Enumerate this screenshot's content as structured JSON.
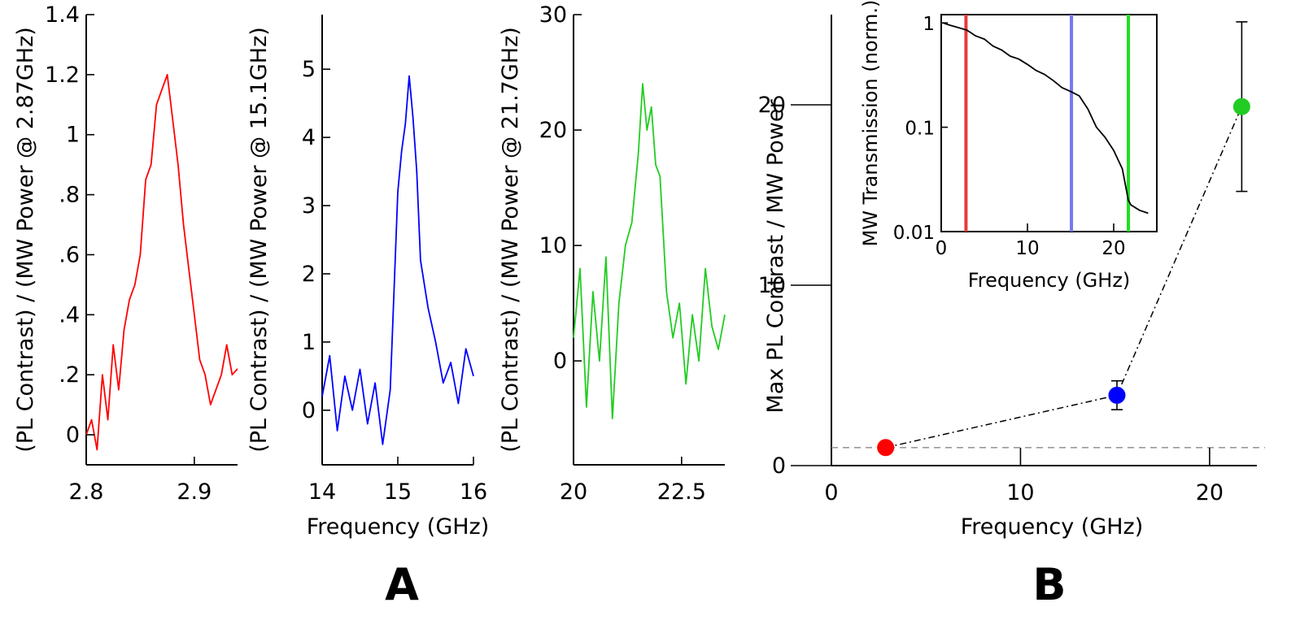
{
  "chart_data": [
    {
      "id": "A1",
      "type": "line",
      "color": "#ff0000",
      "xlabel": "",
      "ylabel": "(PL Contrast) / (MW Power @ 2.87GHz)",
      "xlim": [
        2.8,
        2.94
      ],
      "ylim": [
        -0.1,
        1.4
      ],
      "xticks": [
        {
          "v": 2.8,
          "t": "2.8"
        },
        {
          "v": 2.9,
          "t": "2.9"
        }
      ],
      "yticks": [
        {
          "v": 0,
          "t": "0"
        },
        {
          "v": 0.2,
          "t": ".2"
        },
        {
          "v": 0.4,
          "t": ".4"
        },
        {
          "v": 0.6,
          "t": ".6"
        },
        {
          "v": 0.8,
          "t": ".8"
        },
        {
          "v": 1.0,
          "t": "1"
        },
        {
          "v": 1.2,
          "t": "1.2"
        },
        {
          "v": 1.4,
          "t": "1.4"
        }
      ],
      "series": [
        {
          "name": "2.87 GHz",
          "x": [
            2.8,
            2.805,
            2.81,
            2.815,
            2.82,
            2.825,
            2.83,
            2.835,
            2.84,
            2.845,
            2.85,
            2.855,
            2.86,
            2.865,
            2.87,
            2.875,
            2.88,
            2.885,
            2.89,
            2.895,
            2.9,
            2.905,
            2.91,
            2.915,
            2.92,
            2.925,
            2.93,
            2.935,
            2.94
          ],
          "y": [
            0.0,
            0.05,
            -0.05,
            0.2,
            0.05,
            0.3,
            0.15,
            0.35,
            0.45,
            0.5,
            0.6,
            0.85,
            0.9,
            1.1,
            1.15,
            1.2,
            1.05,
            0.9,
            0.7,
            0.55,
            0.4,
            0.25,
            0.2,
            0.1,
            0.15,
            0.2,
            0.3,
            0.2,
            0.22
          ]
        }
      ]
    },
    {
      "id": "A2",
      "type": "line",
      "color": "#0000ff",
      "xlabel": "Frequency (GHz)",
      "ylabel": "(PL Contrast) / (MW Power @ 15.1GHz)",
      "xlim": [
        14,
        16
      ],
      "ylim": [
        -0.8,
        5.8
      ],
      "xticks": [
        {
          "v": 14,
          "t": "14"
        },
        {
          "v": 15,
          "t": "15"
        },
        {
          "v": 16,
          "t": "16"
        }
      ],
      "yticks": [
        {
          "v": 0,
          "t": "0"
        },
        {
          "v": 1,
          "t": "1"
        },
        {
          "v": 2,
          "t": "2"
        },
        {
          "v": 3,
          "t": "3"
        },
        {
          "v": 4,
          "t": "4"
        },
        {
          "v": 5,
          "t": "5"
        }
      ],
      "series": [
        {
          "name": "15.1 GHz",
          "x": [
            14.0,
            14.1,
            14.2,
            14.3,
            14.4,
            14.5,
            14.6,
            14.7,
            14.8,
            14.9,
            15.0,
            15.05,
            15.1,
            15.15,
            15.2,
            15.25,
            15.3,
            15.4,
            15.5,
            15.6,
            15.7,
            15.8,
            15.9,
            16.0
          ],
          "y": [
            0.2,
            0.8,
            -0.3,
            0.5,
            0.0,
            0.6,
            -0.2,
            0.4,
            -0.5,
            0.3,
            3.2,
            3.8,
            4.2,
            4.9,
            4.3,
            3.5,
            2.2,
            1.5,
            1.0,
            0.4,
            0.7,
            0.1,
            0.9,
            0.5
          ]
        }
      ]
    },
    {
      "id": "A3",
      "type": "line",
      "color": "#22cc22",
      "xlabel": "",
      "ylabel": "(PL Contrast) / (MW Power @ 21.7GHz)",
      "xlim": [
        20,
        23.5
      ],
      "ylim": [
        -9,
        30
      ],
      "xticks": [
        {
          "v": 20,
          "t": "20"
        },
        {
          "v": 22.5,
          "t": "22.5"
        }
      ],
      "yticks": [
        {
          "v": 0,
          "t": "0"
        },
        {
          "v": 10,
          "t": "10"
        },
        {
          "v": 20,
          "t": "20"
        },
        {
          "v": 30,
          "t": "30"
        }
      ],
      "series": [
        {
          "name": "21.7 GHz",
          "x": [
            20.0,
            20.15,
            20.3,
            20.45,
            20.6,
            20.75,
            20.9,
            21.05,
            21.2,
            21.35,
            21.5,
            21.6,
            21.7,
            21.8,
            21.9,
            22.0,
            22.15,
            22.3,
            22.45,
            22.6,
            22.75,
            22.9,
            23.05,
            23.2,
            23.35,
            23.5
          ],
          "y": [
            2,
            8,
            -4,
            6,
            0,
            9,
            -5,
            5,
            10,
            12,
            18,
            24,
            20,
            22,
            17,
            16,
            6,
            2,
            5,
            -2,
            4,
            0,
            8,
            3,
            1,
            4
          ]
        }
      ]
    },
    {
      "id": "B",
      "type": "scatter",
      "xlabel": "Frequency (GHz)",
      "ylabel": "Max PL Contrast / MW Power",
      "xlim": [
        0,
        22.5
      ],
      "ylim": [
        0,
        25
      ],
      "xticks": [
        {
          "v": 0,
          "t": "0"
        },
        {
          "v": 10,
          "t": "10"
        },
        {
          "v": 20,
          "t": "20"
        }
      ],
      "yticks": [
        {
          "v": 0,
          "t": "0"
        },
        {
          "v": 10,
          "t": "10"
        },
        {
          "v": 20,
          "t": "20"
        }
      ],
      "reference_line": 1.0,
      "points": [
        {
          "x": 2.87,
          "y": 1.0,
          "err": 0,
          "color": "#ff0000"
        },
        {
          "x": 15.1,
          "y": 3.9,
          "err": 0.8,
          "color": "#0000ff"
        },
        {
          "x": 21.7,
          "y": 19.9,
          "err": 4.7,
          "color": "#22cc22"
        }
      ]
    },
    {
      "id": "B-inset",
      "type": "line",
      "color": "#000000",
      "xlabel": "Frequency (GHz)",
      "ylabel": "MW Transmission (norm.)",
      "xlim": [
        0,
        25
      ],
      "ylim": [
        0.01,
        1.2
      ],
      "yscale": "log",
      "xticks": [
        {
          "v": 0,
          "t": "0"
        },
        {
          "v": 10,
          "t": "10"
        },
        {
          "v": 20,
          "t": "20"
        }
      ],
      "yticks": [
        {
          "v": 0.01,
          "t": "0.01"
        },
        {
          "v": 0.1,
          "t": "0.1"
        },
        {
          "v": 1,
          "t": "1"
        }
      ],
      "markers": [
        {
          "x": 2.87,
          "color": "#e83a3a"
        },
        {
          "x": 15.1,
          "color": "#7777ee"
        },
        {
          "x": 21.7,
          "color": "#22dd22"
        }
      ],
      "series": [
        {
          "name": "Transmission",
          "x": [
            0.2,
            1,
            2,
            3,
            4,
            5,
            6,
            7,
            8,
            9,
            10,
            11,
            12,
            13,
            14,
            15,
            16,
            17,
            18,
            19,
            20,
            21,
            21.7,
            22,
            23,
            24
          ],
          "y": [
            1.0,
            0.95,
            0.9,
            0.85,
            0.75,
            0.7,
            0.6,
            0.55,
            0.48,
            0.45,
            0.4,
            0.35,
            0.32,
            0.28,
            0.24,
            0.22,
            0.2,
            0.15,
            0.1,
            0.08,
            0.06,
            0.04,
            0.02,
            0.018,
            0.016,
            0.015
          ]
        }
      ]
    }
  ],
  "panel_labels": [
    "A",
    "B"
  ]
}
